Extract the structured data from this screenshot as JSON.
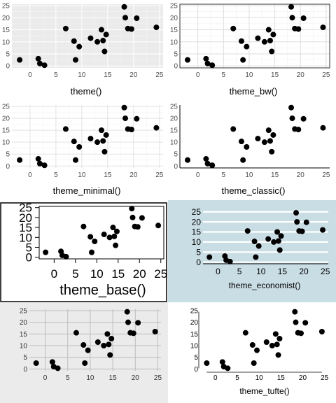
{
  "chart_data": {
    "type": "scatter",
    "points": [
      {
        "x": -2.0,
        "y": 2.5
      },
      {
        "x": 1.6,
        "y": 3.0
      },
      {
        "x": 1.9,
        "y": 1.0
      },
      {
        "x": 2.8,
        "y": 0.3
      },
      {
        "x": 6.9,
        "y": 15.5
      },
      {
        "x": 8.5,
        "y": 10.3
      },
      {
        "x": 8.8,
        "y": 2.5
      },
      {
        "x": 9.5,
        "y": 8.0
      },
      {
        "x": 11.7,
        "y": 11.5
      },
      {
        "x": 13.0,
        "y": 10.0
      },
      {
        "x": 13.8,
        "y": 15.0
      },
      {
        "x": 14.1,
        "y": 10.5
      },
      {
        "x": 14.7,
        "y": 13.0
      },
      {
        "x": 14.4,
        "y": 6.0
      },
      {
        "x": 18.2,
        "y": 24.5
      },
      {
        "x": 18.4,
        "y": 20.0
      },
      {
        "x": 18.9,
        "y": 15.5
      },
      {
        "x": 19.6,
        "y": 15.3
      },
      {
        "x": 20.6,
        "y": 19.8
      },
      {
        "x": 24.4,
        "y": 16.0
      }
    ],
    "xlim": [
      -3.5,
      25.7
    ],
    "ylim": [
      -0.8,
      25.6
    ],
    "x_ticks": [
      0,
      5,
      10,
      15,
      20,
      25
    ],
    "y_ticks": [
      0,
      5,
      10,
      15,
      20,
      25
    ],
    "panels": [
      {
        "xlabel": "theme()"
      },
      {
        "xlabel": "theme_bw()"
      },
      {
        "xlabel": "theme_minimal()"
      },
      {
        "xlabel": "theme_classic()"
      },
      {
        "xlabel": "theme_base()"
      },
      {
        "xlabel": "theme_economist()"
      },
      {
        "xlabel": ""
      },
      {
        "xlabel": "theme_tufte()"
      }
    ]
  }
}
